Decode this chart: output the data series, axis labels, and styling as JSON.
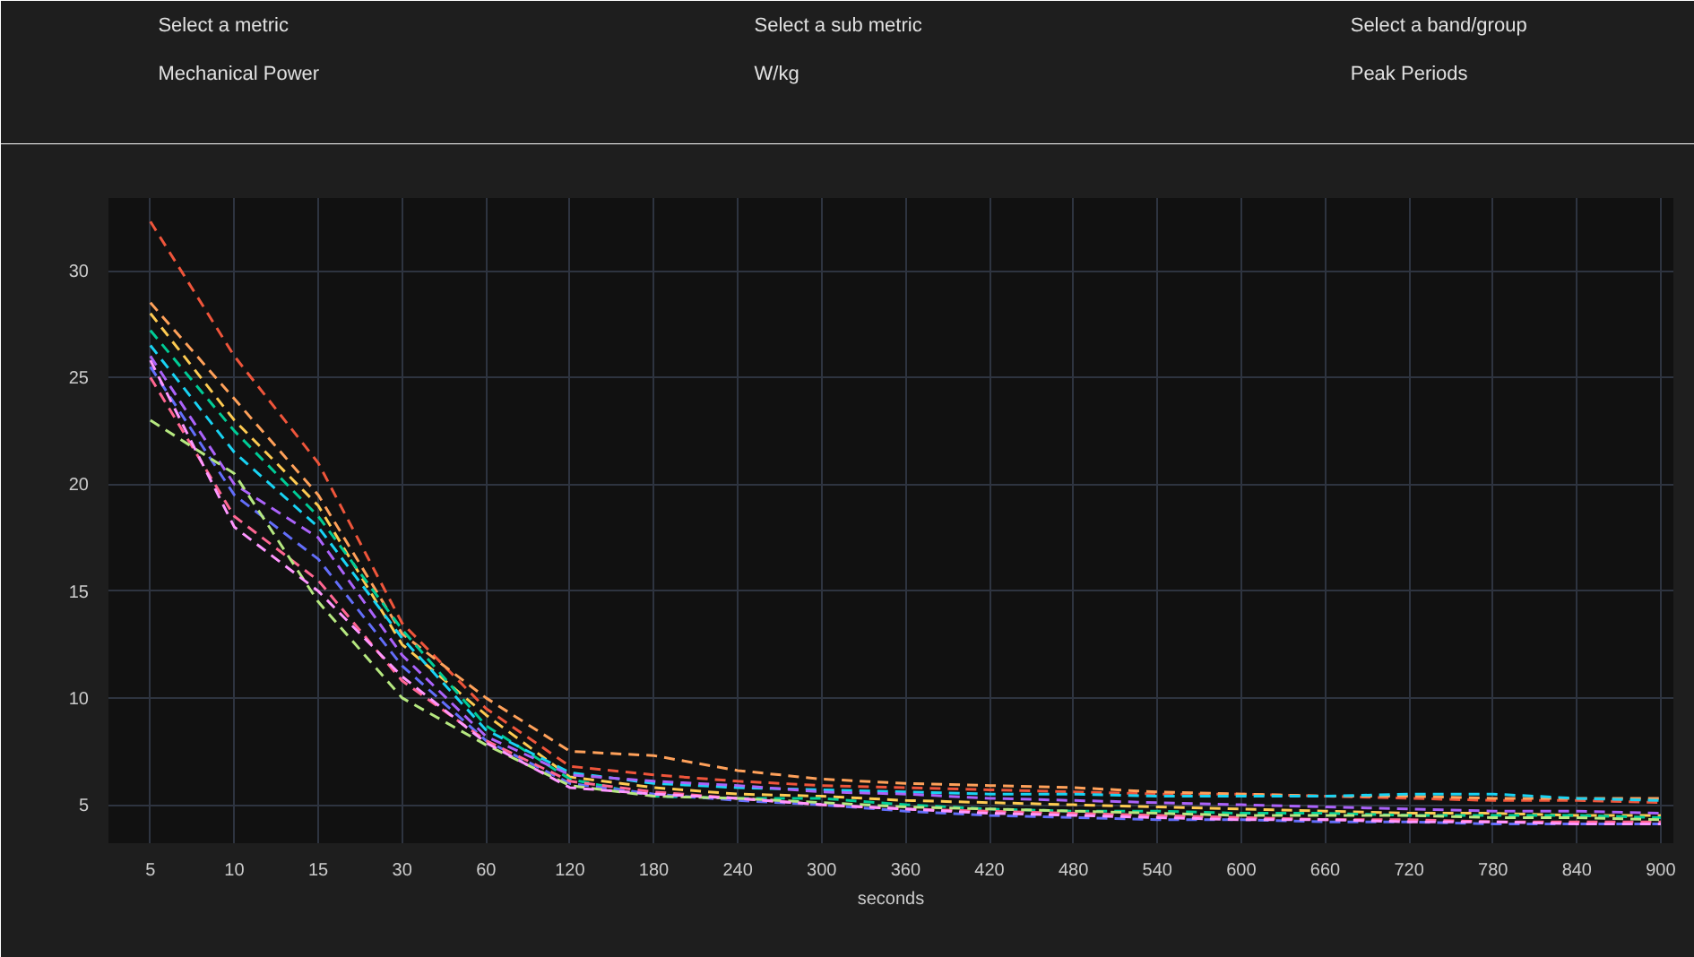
{
  "chart_data": {
    "type": "line",
    "xlabel": "seconds",
    "line_style": "dashed",
    "grid": true,
    "annotations": [
      "Select a metric",
      "Mechanical Power",
      "Select a sub metric",
      "W/kg",
      "Select a band/group",
      "Peak Periods"
    ],
    "categories": [
      "5",
      "10",
      "15",
      "30",
      "60",
      "120",
      "180",
      "240",
      "300",
      "360",
      "420",
      "480",
      "540",
      "600",
      "660",
      "720",
      "780",
      "840",
      "900"
    ],
    "ylim": [
      3.2,
      33.4
    ],
    "yticks": [
      5,
      10,
      15,
      20,
      25,
      30
    ],
    "series": [
      {
        "color": "#ef553b",
        "values": [
          32.3,
          26,
          21,
          13.5,
          9.5,
          6.8,
          6.4,
          6.1,
          5.9,
          5.8,
          5.7,
          5.6,
          5.5,
          5.5,
          5.4,
          5.3,
          5.2,
          5.2,
          5.1
        ]
      },
      {
        "color": "#ffa15a",
        "values": [
          28.5,
          24,
          19.5,
          13,
          10,
          7.5,
          7.3,
          6.6,
          6.2,
          6.0,
          5.9,
          5.8,
          5.6,
          5.5,
          5.4,
          5.4,
          5.3,
          5.3,
          5.3
        ]
      },
      {
        "color": "#fecb52",
        "values": [
          28,
          23,
          19,
          12.5,
          9.2,
          6.3,
          5.8,
          5.5,
          5.4,
          5.2,
          5.1,
          5.0,
          4.9,
          4.8,
          4.7,
          4.6,
          4.6,
          4.5,
          4.5
        ]
      },
      {
        "color": "#00cc96",
        "values": [
          27.2,
          22.5,
          18.5,
          13.2,
          8.7,
          6.2,
          5.4,
          5.3,
          5.3,
          5.0,
          4.8,
          4.7,
          4.7,
          4.6,
          4.6,
          4.5,
          4.5,
          4.5,
          4.4
        ]
      },
      {
        "color": "#19d3f3",
        "values": [
          26.5,
          21.5,
          18,
          12.8,
          8.5,
          6.5,
          6.0,
          5.8,
          5.7,
          5.6,
          5.5,
          5.5,
          5.4,
          5.4,
          5.4,
          5.5,
          5.5,
          5.3,
          5.2
        ]
      },
      {
        "color": "#ab63fa",
        "values": [
          26,
          20,
          17.5,
          12,
          8.2,
          6.4,
          6.1,
          5.9,
          5.6,
          5.5,
          5.3,
          5.2,
          5.1,
          5.0,
          4.9,
          4.8,
          4.7,
          4.7,
          4.6
        ]
      },
      {
        "color": "#636efa",
        "values": [
          25.5,
          19.5,
          16.5,
          11.5,
          8.0,
          6.0,
          5.5,
          5.2,
          5.0,
          4.7,
          4.5,
          4.4,
          4.3,
          4.3,
          4.2,
          4.2,
          4.1,
          4.1,
          4.1
        ]
      },
      {
        "color": "#ff6692",
        "values": [
          25,
          18.5,
          15.5,
          10.8,
          8.0,
          6.1,
          5.6,
          5.3,
          5.0,
          4.8,
          4.7,
          4.6,
          4.5,
          4.4,
          4.3,
          4.3,
          4.2,
          4.2,
          4.2
        ]
      },
      {
        "color": "#b6e880",
        "values": [
          23,
          20.5,
          14.5,
          10,
          7.8,
          5.9,
          5.4,
          5.3,
          5.1,
          4.9,
          4.8,
          4.7,
          4.6,
          4.5,
          4.5,
          4.5,
          4.4,
          4.4,
          4.3
        ]
      },
      {
        "color": "#ff97ff",
        "values": [
          25.8,
          18,
          15,
          11,
          7.9,
          5.8,
          5.5,
          5.3,
          5.0,
          4.8,
          4.6,
          4.5,
          4.4,
          4.3,
          4.3,
          4.2,
          4.2,
          4.1,
          4.1
        ]
      }
    ]
  }
}
